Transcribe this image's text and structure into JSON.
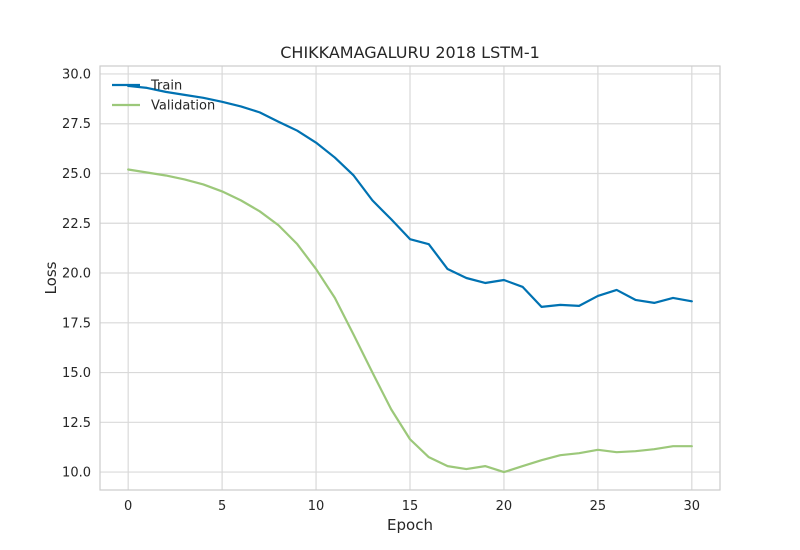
{
  "chart_data": {
    "type": "line",
    "title": "CHIKKAMAGALURU 2018 LSTM-1",
    "xlabel": "Epoch",
    "ylabel": "Loss",
    "xlim": [
      -1.5,
      31.5
    ],
    "ylim": [
      9.1,
      30.4
    ],
    "xticks": [
      0,
      5,
      10,
      15,
      20,
      25,
      30
    ],
    "yticks": [
      10.0,
      12.5,
      15.0,
      17.5,
      20.0,
      22.5,
      25.0,
      27.5,
      30.0
    ],
    "grid": true,
    "legend_position": "top-left",
    "x": [
      0,
      1,
      2,
      3,
      4,
      5,
      6,
      7,
      8,
      9,
      10,
      11,
      12,
      13,
      14,
      15,
      16,
      17,
      18,
      19,
      20,
      21,
      22,
      23,
      24,
      25,
      26,
      27,
      28,
      29,
      30
    ],
    "series": [
      {
        "name": "Train",
        "color": "#0072b2",
        "values": [
          29.4,
          29.3,
          29.1,
          28.95,
          28.8,
          28.6,
          28.37,
          28.07,
          27.6,
          27.15,
          26.55,
          25.8,
          24.9,
          23.65,
          22.7,
          21.7,
          21.45,
          20.2,
          19.75,
          19.5,
          19.65,
          19.3,
          18.3,
          18.4,
          18.35,
          18.85,
          19.15,
          18.65,
          18.5,
          18.75,
          18.58
        ]
      },
      {
        "name": "Validation",
        "color": "#9cc87a",
        "values": [
          25.2,
          25.05,
          24.9,
          24.7,
          24.45,
          24.1,
          23.65,
          23.1,
          22.4,
          21.45,
          20.2,
          18.75,
          16.9,
          15.0,
          13.15,
          11.65,
          10.75,
          10.3,
          10.15,
          10.3,
          10.0,
          10.3,
          10.6,
          10.85,
          10.95,
          11.12,
          11.0,
          11.05,
          11.15,
          11.3,
          11.3
        ]
      }
    ]
  }
}
